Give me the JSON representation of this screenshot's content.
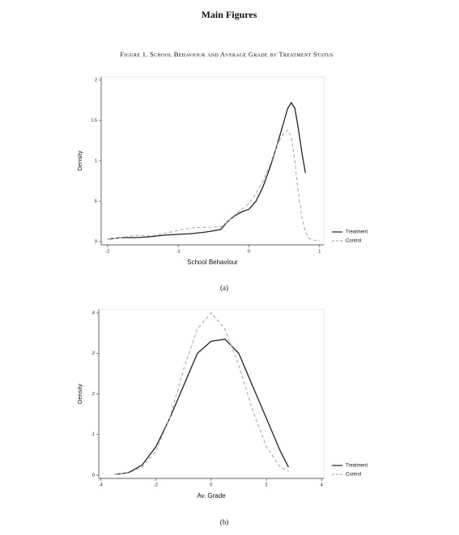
{
  "header": {
    "title": "Main Figures",
    "caption": "Figure 1. School Behaviour and Average Grade by Treatment Status"
  },
  "chart_data": [
    {
      "type": "line",
      "xlabel": "School Behaviour",
      "ylabel": "Density",
      "caption": "(a)",
      "x": [
        -2,
        -1.8,
        -1.6,
        -1.4,
        -1.2,
        -1,
        -0.8,
        -0.6,
        -0.4,
        -0.3,
        -0.2,
        -0.1,
        0,
        0.1,
        0.2,
        0.3,
        0.4,
        0.5,
        0.55,
        0.6,
        0.65,
        0.7,
        0.75,
        0.8,
        0.85,
        0.9,
        1.0
      ],
      "series": [
        {
          "name": "Treatment",
          "color": "#222222",
          "dash": "solid",
          "values": [
            0.03,
            0.05,
            0.05,
            0.06,
            0.08,
            0.09,
            0.1,
            0.12,
            0.15,
            0.25,
            0.32,
            0.37,
            0.4,
            0.5,
            0.68,
            0.92,
            1.2,
            1.5,
            1.65,
            1.72,
            1.65,
            1.4,
            1.1,
            0.85,
            null,
            null,
            null
          ]
        },
        {
          "name": "Control",
          "color": "#aaaaaa",
          "dash": "dashed",
          "values": [
            0.03,
            0.05,
            0.08,
            0.07,
            0.1,
            0.14,
            0.17,
            0.18,
            0.18,
            0.25,
            0.33,
            0.4,
            0.47,
            0.6,
            0.75,
            0.95,
            1.2,
            1.35,
            1.38,
            1.3,
            1.0,
            0.6,
            0.3,
            0.12,
            0.04,
            0.02,
            0.01
          ]
        }
      ],
      "xlim": [
        -2.09,
        1.06
      ],
      "ylim": [
        -0.04,
        2.04
      ],
      "xticks": [
        -2,
        -1,
        0,
        1
      ],
      "yticks": [
        0,
        {
          "value": 0.5,
          "label": ".5"
        },
        1,
        1.5,
        2
      ],
      "legend": "right"
    },
    {
      "type": "line",
      "xlabel": "Av. Grade",
      "ylabel": "Density",
      "caption": "(b)",
      "x": [
        -3.5,
        -3,
        -2.5,
        -2,
        -1.5,
        -1,
        -0.5,
        0,
        0.5,
        1,
        1.5,
        2,
        2.5,
        2.8
      ],
      "series": [
        {
          "name": "Treatment",
          "color": "#222222",
          "dash": "solid",
          "values": [
            0.002,
            0.006,
            0.025,
            0.07,
            0.14,
            0.22,
            0.3,
            0.33,
            0.335,
            0.3,
            0.22,
            0.14,
            0.06,
            0.02
          ]
        },
        {
          "name": "Control",
          "color": "#aaaaaa",
          "dash": "dashed",
          "values": [
            0.002,
            0.005,
            0.02,
            0.06,
            0.14,
            0.26,
            0.36,
            0.4,
            0.36,
            0.27,
            0.16,
            0.07,
            0.02,
            0.01
          ]
        }
      ],
      "xlim": [
        -4.07,
        4.08
      ],
      "ylim": [
        -0.008,
        0.408
      ],
      "xticks": [
        -4,
        -2,
        0,
        2,
        4
      ],
      "yticks": [
        0,
        {
          "value": 0.1,
          "label": ".1"
        },
        {
          "value": 0.2,
          "label": ".2"
        },
        {
          "value": 0.3,
          "label": ".3"
        },
        {
          "value": 0.4,
          "label": ".4"
        }
      ],
      "legend": "right"
    }
  ]
}
